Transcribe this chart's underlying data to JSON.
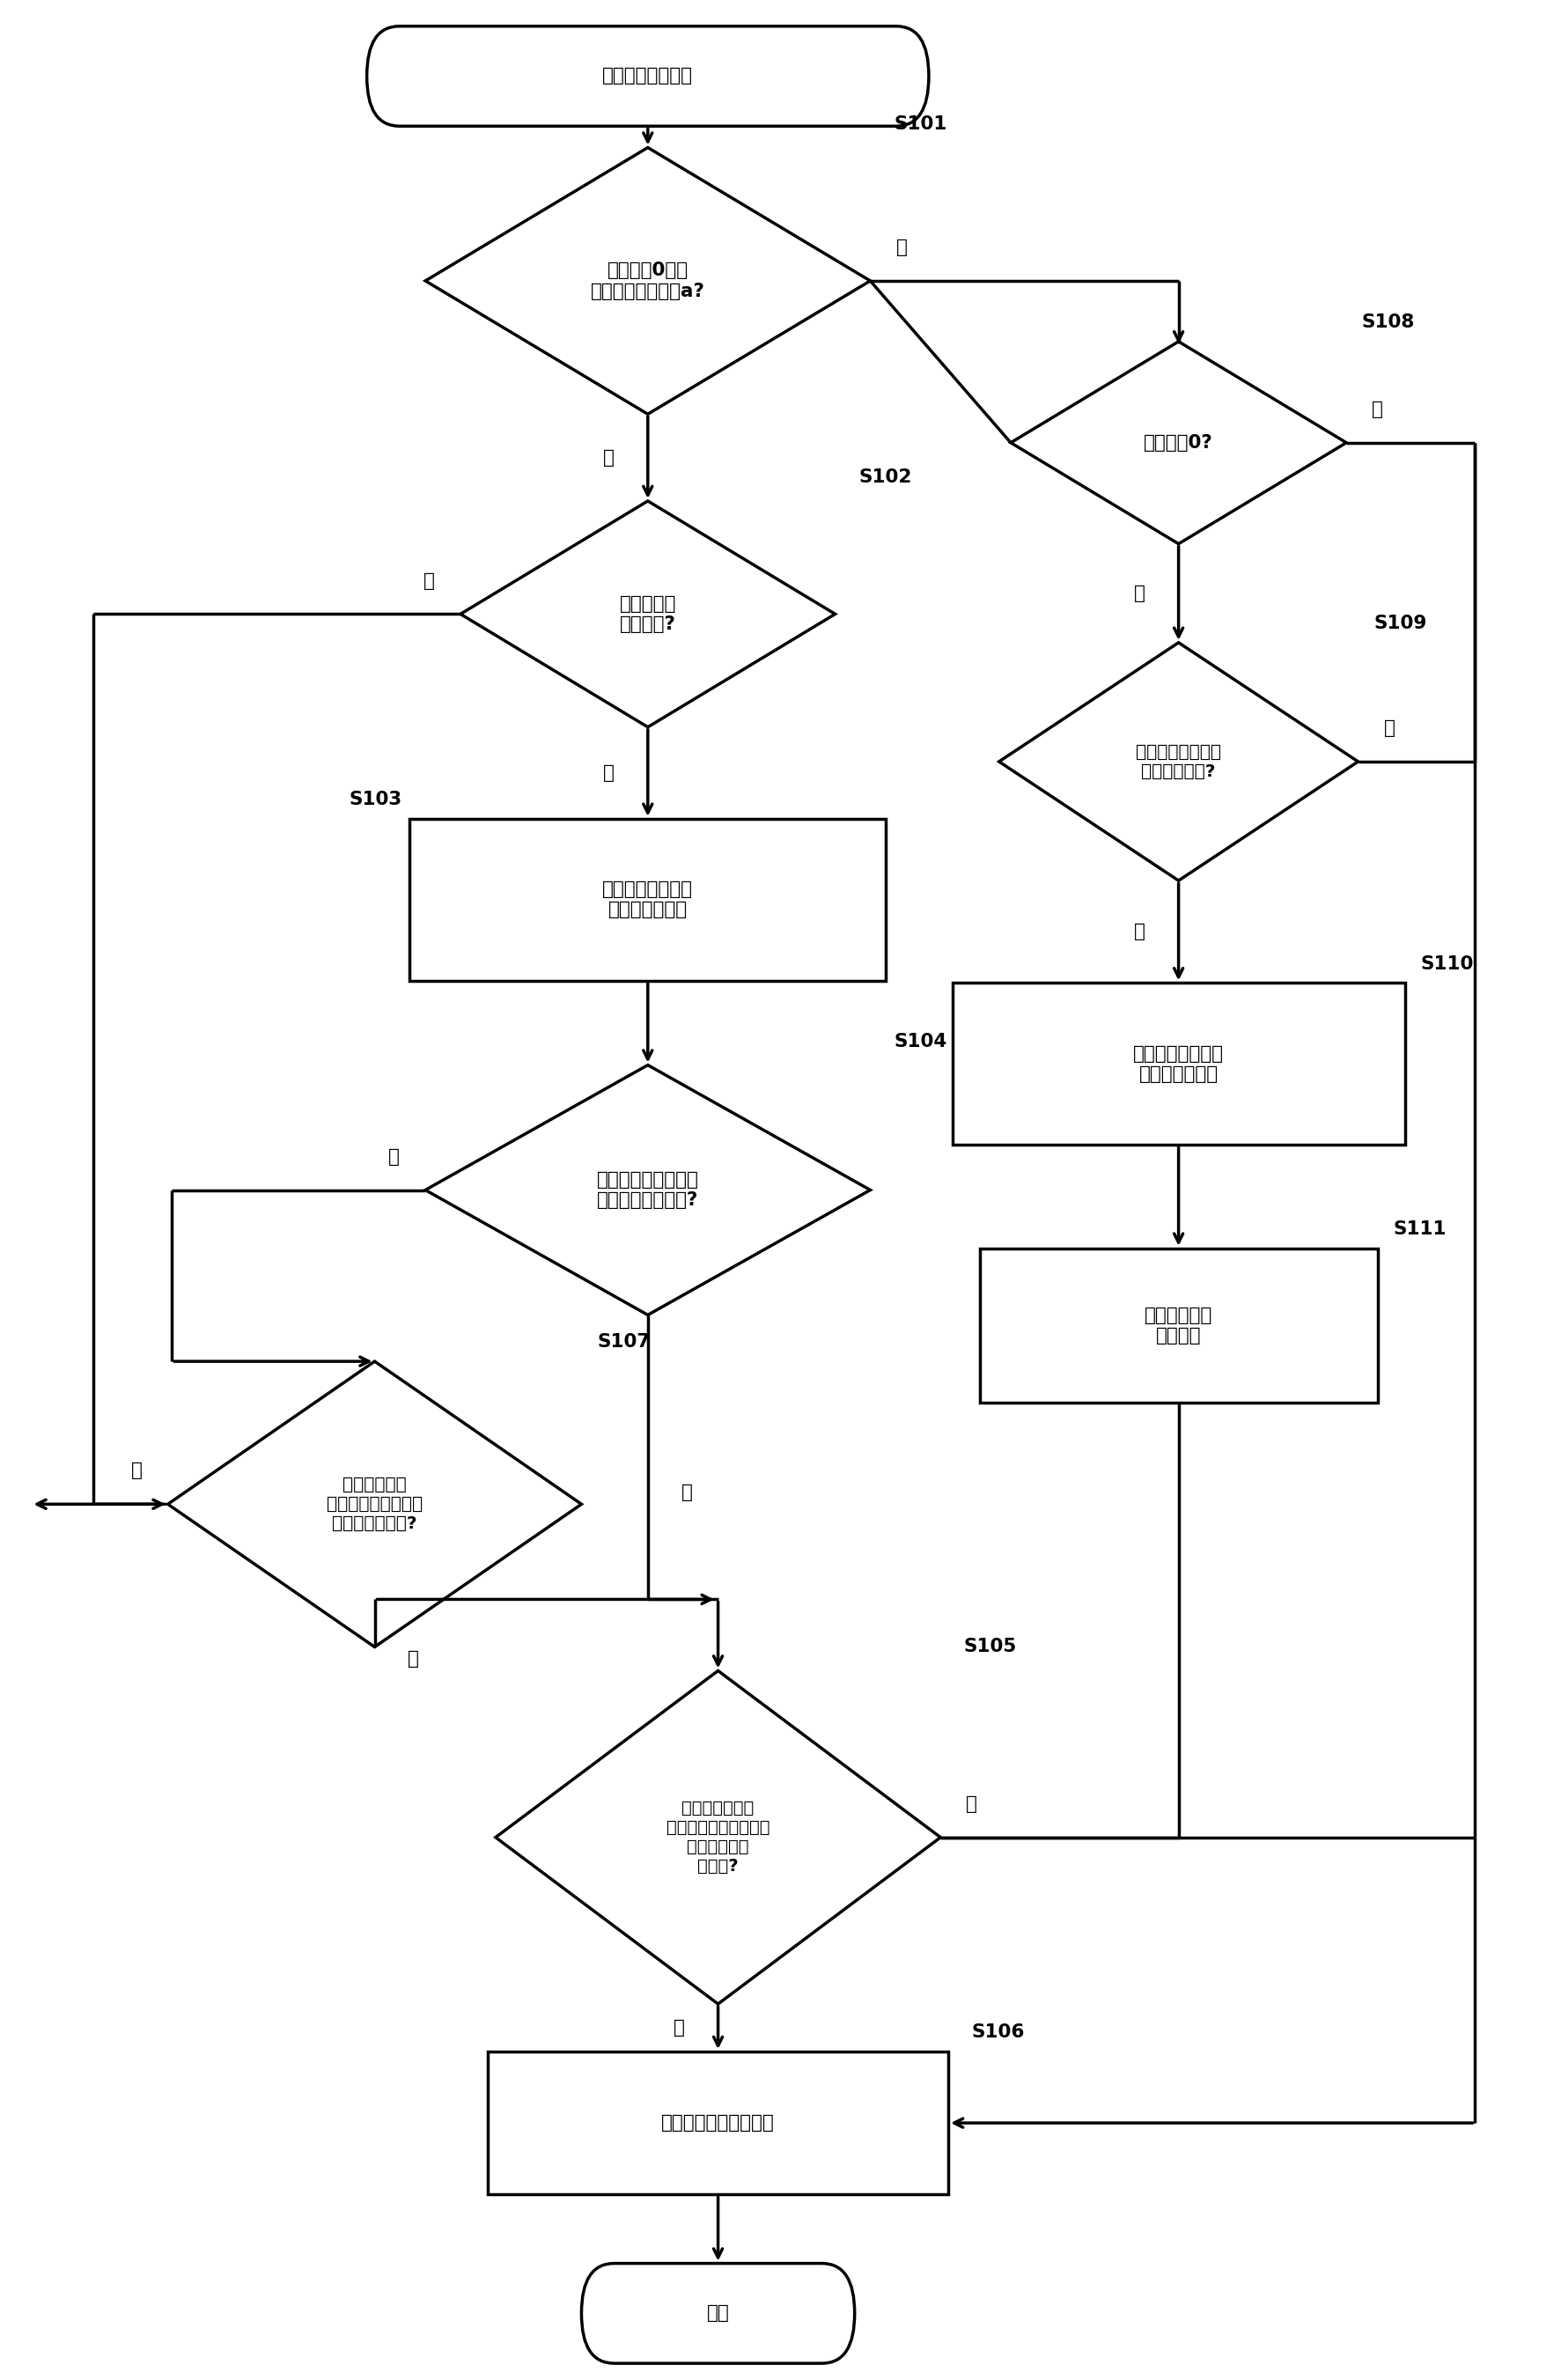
{
  "bg_color": "#ffffff",
  "line_color": "#000000",
  "text_color": "#000000",
  "title_text": "可停止性提高程序",
  "end_text": "结束",
  "s101_text": "车速高于0并且\n等于或低于预定值a?",
  "s102_text": "发动机处于\n怠速运转?",
  "s103_text": "执行辅助设备驱动\n要求值降低处理",
  "s104_text": "车辆正行驶在具有低\n摩擦系数的路面上?",
  "s105_text": "已经到达对应于\n辅助设备的驱动要求值\n的降低开始的\n时间点?",
  "s106_text": "执行目标转速降低处理",
  "s107_text": "从对应于降低\n开始的时间点起已经\n经过了延迟时间?",
  "s108_text": "车速等于0?",
  "s109_text": "正在降低辅助设备\n的驱动要求值?",
  "s110_text": "执行辅助设备驱动\n要求值恢复处理",
  "s111_text": "执行目标转速\n恢复处理",
  "yes_text": "是",
  "no_text": "否",
  "s101_label": "S101",
  "s102_label": "S102",
  "s103_label": "S103",
  "s104_label": "S104",
  "s105_label": "S105",
  "s106_label": "S106",
  "s107_label": "S107",
  "s108_label": "S108",
  "s109_label": "S109",
  "s110_label": "S110",
  "s111_label": "S111",
  "lw": 2.5,
  "fs": 15.5,
  "fs_label": 15.5
}
